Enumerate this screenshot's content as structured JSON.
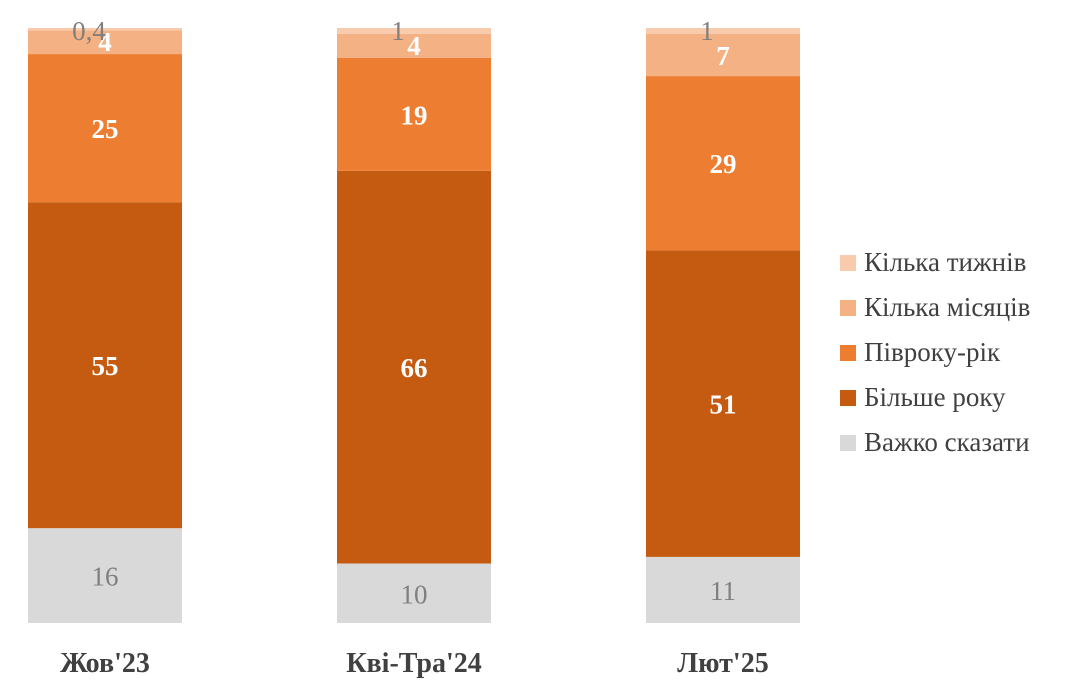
{
  "chart_data": {
    "type": "bar",
    "stacked": true,
    "normalized_percent": true,
    "categories": [
      "Жов'23",
      "Кві-Тра'24",
      "Лют'25"
    ],
    "series": [
      {
        "name": "Важко сказати",
        "color": "#d9d9d9",
        "label_color": "#7f7f7f",
        "values": [
          16,
          10,
          11
        ],
        "labels": [
          "16",
          "10",
          "11"
        ]
      },
      {
        "name": "Більше року",
        "color": "#c55a11",
        "label_color": "#ffffff",
        "values": [
          55,
          66,
          51
        ],
        "labels": [
          "55",
          "66",
          "51"
        ]
      },
      {
        "name": "Півроку-рік",
        "color": "#ed7d31",
        "label_color": "#ffffff",
        "values": [
          25,
          19,
          29
        ],
        "labels": [
          "25",
          "19",
          "29"
        ]
      },
      {
        "name": "Кілька місяців",
        "color": "#f4b183",
        "label_color": "#ffffff",
        "values": [
          4,
          4,
          7
        ],
        "labels": [
          "4",
          "4",
          "7"
        ]
      },
      {
        "name": "Кілька тижнів",
        "color": "#f8cbad",
        "label_color": "#7f7f7f",
        "values": [
          0.4,
          1,
          1
        ],
        "labels": [
          "0,4",
          "1",
          "1"
        ]
      }
    ],
    "legend": {
      "position": "right",
      "order": [
        "Кілька тижнів",
        "Кілька місяців",
        "Півроку-рік",
        "Більше року",
        "Важко сказати"
      ]
    },
    "axes": {
      "y_visible": false,
      "grid": false
    }
  }
}
